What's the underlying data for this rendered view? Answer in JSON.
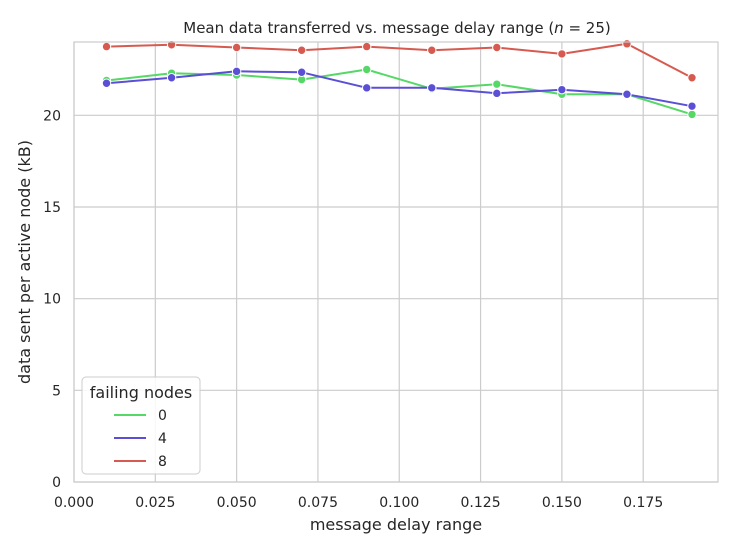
{
  "chart_data": {
    "type": "line",
    "title_main": "Mean data transferred vs. message delay range (",
    "title_var": "n",
    "title_rest": " = 25)",
    "xlabel": "message delay range",
    "ylabel": "data sent per active node (kB)",
    "xlim": [
      0.0,
      0.198
    ],
    "ylim": [
      0,
      24
    ],
    "xticks": [
      "0.000",
      "0.025",
      "0.050",
      "0.075",
      "0.100",
      "0.125",
      "0.150",
      "0.175"
    ],
    "yticks": [
      "0",
      "5",
      "10",
      "15",
      "20"
    ],
    "grid": true,
    "legend": {
      "title": "failing nodes",
      "placement": "lower-left"
    },
    "x": [
      0.01,
      0.03,
      0.05,
      0.07,
      0.09,
      0.11,
      0.13,
      0.15,
      0.17,
      0.19
    ],
    "series": [
      {
        "name": "0",
        "color": "#55d866",
        "values": [
          21.9,
          22.3,
          22.2,
          21.95,
          22.5,
          21.45,
          21.7,
          21.15,
          21.15,
          20.05
        ]
      },
      {
        "name": "4",
        "color": "#5b4fd6",
        "values": [
          21.75,
          22.05,
          22.4,
          22.35,
          21.5,
          21.5,
          21.2,
          21.4,
          21.15,
          20.5
        ]
      },
      {
        "name": "8",
        "color": "#d65a4f",
        "values": [
          23.75,
          23.85,
          23.7,
          23.55,
          23.75,
          23.55,
          23.7,
          23.35,
          23.9,
          22.05
        ]
      }
    ]
  }
}
